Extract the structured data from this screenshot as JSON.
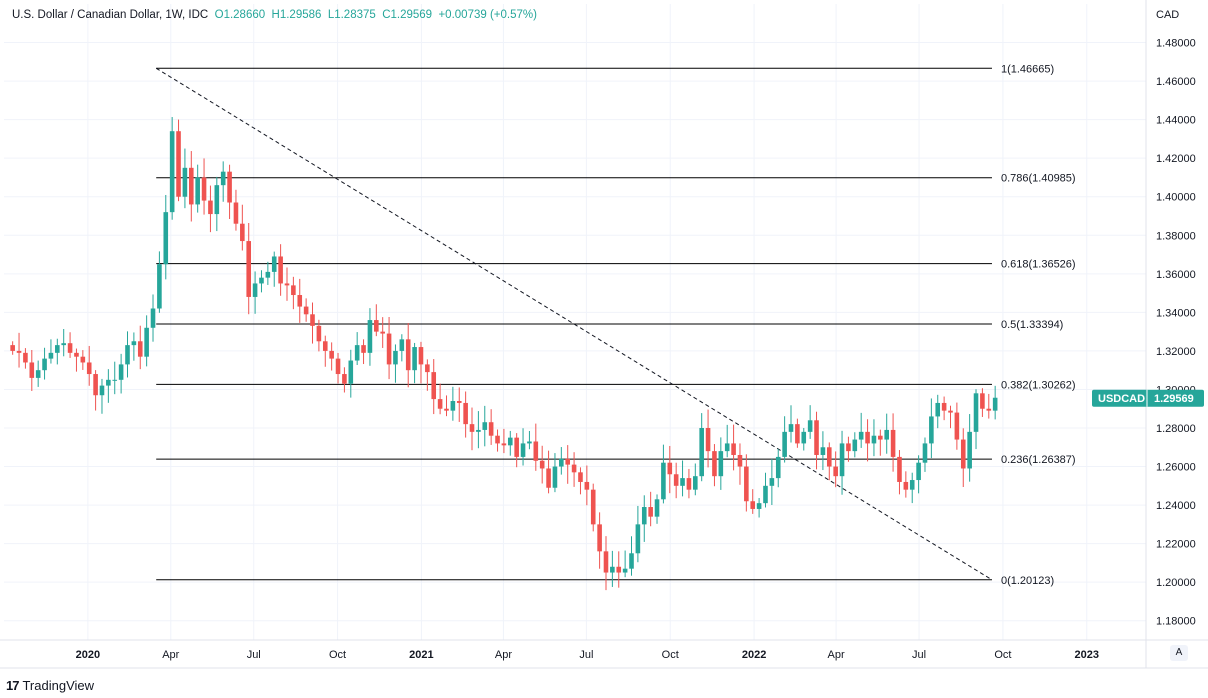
{
  "header": {
    "symbol": "U.S. Dollar / Canadian Dollar, 1W, IDC",
    "open_label": "O",
    "open": "1.28660",
    "high_label": "H",
    "high": "1.29586",
    "low_label": "L",
    "low": "1.28375",
    "close_label": "C",
    "close": "1.29569",
    "change": "+0.00739 (+0.57%)"
  },
  "currency_label": "CAD",
  "price_badge": {
    "symbol": "USDCAD",
    "value": "1.29569"
  },
  "scale_button": "A",
  "branding": {
    "logo": "17",
    "name": "TradingView"
  },
  "colors": {
    "up": "#26a69a",
    "down": "#ef5350",
    "fib_line": "#000000",
    "grid": "#f0f3fa",
    "axis_text": "#131722"
  },
  "chart_data": {
    "type": "candlestick",
    "title": "U.S. Dollar / Canadian Dollar, 1W, IDC",
    "ylim": [
      1.17,
      1.5
    ],
    "xlim": [
      "2019-10-01",
      "2023-03-07"
    ],
    "y_ticks": [
      "1.48000",
      "1.46000",
      "1.44000",
      "1.42000",
      "1.40000",
      "1.38000",
      "1.36000",
      "1.34000",
      "1.32000",
      "1.30000",
      "1.28000",
      "1.26000",
      "1.24000",
      "1.22000",
      "1.20000",
      "1.18000"
    ],
    "x_ticks": [
      {
        "label": "2020",
        "date": "2020-01-01",
        "bold": true
      },
      {
        "label": "Apr",
        "date": "2020-04-01"
      },
      {
        "label": "Jul",
        "date": "2020-07-01"
      },
      {
        "label": "Oct",
        "date": "2020-10-01"
      },
      {
        "label": "2021",
        "date": "2021-01-01",
        "bold": true
      },
      {
        "label": "Apr",
        "date": "2021-04-01"
      },
      {
        "label": "Jul",
        "date": "2021-07-01"
      },
      {
        "label": "Oct",
        "date": "2021-10-01"
      },
      {
        "label": "2022",
        "date": "2022-01-01",
        "bold": true
      },
      {
        "label": "Apr",
        "date": "2022-04-01"
      },
      {
        "label": "Jul",
        "date": "2022-07-01"
      },
      {
        "label": "Oct",
        "date": "2022-10-01"
      },
      {
        "label": "2023",
        "date": "2023-01-01",
        "bold": true
      }
    ],
    "fib_start": "2020-03-16",
    "fib_end": "2022-09-19",
    "fib_levels": [
      {
        "label": "1(1.46665)",
        "value": 1.46665
      },
      {
        "label": "0.786(1.40985)",
        "value": 1.40985
      },
      {
        "label": "0.618(1.36526)",
        "value": 1.36526
      },
      {
        "label": "0.5(1.33394)",
        "value": 1.33394
      },
      {
        "label": "0.382(1.30262)",
        "value": 1.30262
      },
      {
        "label": "0.236(1.26387)",
        "value": 1.26387
      },
      {
        "label": "0(1.20123)",
        "value": 1.20123
      }
    ],
    "trend_line": [
      {
        "date": "2020-03-16",
        "value": 1.46665
      },
      {
        "date": "2022-09-19",
        "value": 1.20123
      }
    ],
    "last_price": 1.29569,
    "first_candle": "2019-10-07",
    "closes": [
      1.32,
      1.319,
      1.314,
      1.306,
      1.31,
      1.316,
      1.319,
      1.323,
      1.324,
      1.319,
      1.317,
      1.314,
      1.308,
      1.297,
      1.302,
      1.305,
      1.305,
      1.313,
      1.323,
      1.325,
      1.317,
      1.332,
      1.342,
      1.365,
      1.392,
      1.434,
      1.4,
      1.415,
      1.396,
      1.41,
      1.398,
      1.391,
      1.406,
      1.413,
      1.397,
      1.386,
      1.377,
      1.348,
      1.355,
      1.358,
      1.361,
      1.369,
      1.355,
      1.354,
      1.349,
      1.343,
      1.339,
      1.333,
      1.325,
      1.32,
      1.316,
      1.308,
      1.303,
      1.315,
      1.323,
      1.319,
      1.336,
      1.33,
      1.329,
      1.313,
      1.32,
      1.326,
      1.31,
      1.322,
      1.313,
      1.309,
      1.295,
      1.29,
      1.289,
      1.294,
      1.293,
      1.282,
      1.278,
      1.279,
      1.283,
      1.276,
      1.272,
      1.271,
      1.275,
      1.265,
      1.272,
      1.273,
      1.263,
      1.259,
      1.249,
      1.26,
      1.264,
      1.261,
      1.257,
      1.252,
      1.248,
      1.23,
      1.216,
      1.205,
      1.208,
      1.205,
      1.207,
      1.215,
      1.23,
      1.239,
      1.234,
      1.243,
      1.262,
      1.256,
      1.25,
      1.254,
      1.248,
      1.255,
      1.28,
      1.268,
      1.255,
      1.268,
      1.272,
      1.266,
      1.26,
      1.242,
      1.238,
      1.241,
      1.25,
      1.254,
      1.265,
      1.278,
      1.282,
      1.272,
      1.278,
      1.284,
      1.266,
      1.27,
      1.26,
      1.255,
      1.272,
      1.268,
      1.274,
      1.278,
      1.272,
      1.276,
      1.274,
      1.279,
      1.265,
      1.252,
      1.248,
      1.253,
      1.262,
      1.272,
      1.286,
      1.293,
      1.289,
      1.288,
      1.274,
      1.259,
      1.278,
      1.298,
      1.29,
      1.289,
      1.2957
    ]
  }
}
